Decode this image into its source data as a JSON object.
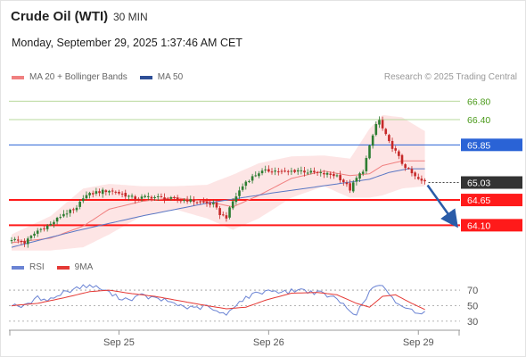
{
  "header": {
    "instrument": "Crude Oil (WTI)",
    "interval": "30 MIN",
    "datetime": "Monday, September 29, 2025 1:37:46 AM CET"
  },
  "legend": {
    "ma20_bb": "MA 20 + Bollinger Bands",
    "ma50": "MA 50",
    "credit": "Research © 2025 Trading Central"
  },
  "rsi_legend": {
    "rsi": "RSI",
    "ma9": "9MA"
  },
  "colors": {
    "up": "#2e7d32",
    "down": "#c62828",
    "ma20": "#f08080",
    "band": "#fde0e0",
    "ma50": "#5a77c4",
    "support": "#ff1a1a",
    "resistance_blue": "#2a63d6",
    "resistance_green": "#b7d89c",
    "green_text": "#4a9a1a",
    "current": "#333333",
    "arrow": "#2a5ca8",
    "rsi": "#6b84d4",
    "rsi_ma": "#e53935"
  },
  "chart_data": [
    {
      "type": "candlestick",
      "x_labels": [
        "Sep 25",
        "Sep 26",
        "Sep 29"
      ],
      "ylim": [
        63.66,
        67.1
      ],
      "levels": [
        {
          "value": 66.8,
          "label": "66.80",
          "style": "green"
        },
        {
          "value": 66.4,
          "label": "66.40",
          "style": "green"
        },
        {
          "value": 65.85,
          "label": "65.85",
          "style": "blue"
        },
        {
          "value": 65.03,
          "label": "65.03",
          "style": "current"
        },
        {
          "value": 64.65,
          "label": "64.65",
          "style": "red"
        },
        {
          "value": 64.1,
          "label": "64.10",
          "style": "red"
        }
      ],
      "close_anchors": [
        [
          0,
          63.8
        ],
        [
          4,
          63.72
        ],
        [
          8,
          63.98
        ],
        [
          12,
          64.12
        ],
        [
          16,
          64.35
        ],
        [
          20,
          64.45
        ],
        [
          22,
          64.72
        ],
        [
          26,
          64.82
        ],
        [
          30,
          64.86
        ],
        [
          34,
          64.78
        ],
        [
          38,
          64.68
        ],
        [
          42,
          64.72
        ],
        [
          46,
          64.7
        ],
        [
          50,
          64.66
        ],
        [
          54,
          64.65
        ],
        [
          58,
          64.6
        ],
        [
          62,
          64.55
        ],
        [
          64,
          64.35
        ],
        [
          66,
          64.28
        ],
        [
          68,
          64.62
        ],
        [
          70,
          64.85
        ],
        [
          72,
          65.05
        ],
        [
          76,
          65.25
        ],
        [
          80,
          65.3
        ],
        [
          84,
          65.25
        ],
        [
          88,
          65.3
        ],
        [
          92,
          65.25
        ],
        [
          96,
          65.22
        ],
        [
          100,
          65.18
        ],
        [
          102,
          65.05
        ],
        [
          104,
          64.88
        ],
        [
          106,
          65.12
        ],
        [
          108,
          65.3
        ],
        [
          110,
          65.8
        ],
        [
          112,
          66.3
        ],
        [
          113,
          66.38
        ],
        [
          114,
          66.2
        ],
        [
          116,
          65.9
        ],
        [
          118,
          65.7
        ],
        [
          120,
          65.45
        ],
        [
          122,
          65.3
        ],
        [
          124,
          65.15
        ],
        [
          126,
          65.05
        ],
        [
          127,
          65.05
        ]
      ],
      "ma20": [
        [
          0,
          63.72
        ],
        [
          12,
          63.82
        ],
        [
          22,
          64.08
        ],
        [
          30,
          64.45
        ],
        [
          40,
          64.62
        ],
        [
          50,
          64.7
        ],
        [
          60,
          64.62
        ],
        [
          68,
          64.5
        ],
        [
          76,
          64.75
        ],
        [
          86,
          65.12
        ],
        [
          96,
          65.28
        ],
        [
          104,
          65.18
        ],
        [
          110,
          65.22
        ],
        [
          114,
          65.4
        ],
        [
          120,
          65.5
        ],
        [
          127,
          65.5
        ]
      ],
      "bb_upper": [
        [
          0,
          63.9
        ],
        [
          12,
          64.3
        ],
        [
          22,
          64.9
        ],
        [
          30,
          65.0
        ],
        [
          40,
          64.95
        ],
        [
          50,
          64.95
        ],
        [
          60,
          64.98
        ],
        [
          68,
          65.2
        ],
        [
          76,
          65.45
        ],
        [
          86,
          65.6
        ],
        [
          96,
          65.62
        ],
        [
          104,
          65.55
        ],
        [
          110,
          66.2
        ],
        [
          114,
          66.5
        ],
        [
          120,
          66.45
        ],
        [
          127,
          66.15
        ]
      ],
      "bb_lower": [
        [
          0,
          63.55
        ],
        [
          12,
          63.55
        ],
        [
          22,
          63.62
        ],
        [
          30,
          63.9
        ],
        [
          40,
          64.3
        ],
        [
          50,
          64.45
        ],
        [
          60,
          64.25
        ],
        [
          68,
          64.0
        ],
        [
          76,
          64.25
        ],
        [
          86,
          64.7
        ],
        [
          96,
          64.95
        ],
        [
          104,
          64.7
        ],
        [
          110,
          64.7
        ],
        [
          114,
          64.75
        ],
        [
          120,
          64.9
        ],
        [
          127,
          64.95
        ]
      ],
      "ma50": [
        [
          0,
          63.62
        ],
        [
          20,
          63.98
        ],
        [
          40,
          64.3
        ],
        [
          60,
          64.58
        ],
        [
          80,
          64.8
        ],
        [
          100,
          65.0
        ],
        [
          110,
          65.1
        ],
        [
          116,
          65.25
        ],
        [
          122,
          65.33
        ],
        [
          127,
          65.33
        ]
      ],
      "forecast_arrow": {
        "from": 65.03,
        "to": 64.1
      }
    },
    {
      "type": "line",
      "title": "RSI",
      "yticks": [
        70,
        50,
        30
      ],
      "ylim": [
        23,
        85
      ],
      "series": [
        {
          "name": "RSI",
          "points": [
            [
              0,
              52
            ],
            [
              4,
              49
            ],
            [
              8,
              60
            ],
            [
              12,
              58
            ],
            [
              16,
              67
            ],
            [
              20,
              73
            ],
            [
              24,
              76
            ],
            [
              28,
              71
            ],
            [
              32,
              62
            ],
            [
              36,
              58
            ],
            [
              40,
              63
            ],
            [
              44,
              59
            ],
            [
              48,
              56
            ],
            [
              52,
              50
            ],
            [
              56,
              46
            ],
            [
              60,
              49
            ],
            [
              64,
              40
            ],
            [
              66,
              38
            ],
            [
              68,
              49
            ],
            [
              72,
              60
            ],
            [
              76,
              67
            ],
            [
              80,
              70
            ],
            [
              84,
              67
            ],
            [
              88,
              71
            ],
            [
              92,
              68
            ],
            [
              96,
              65
            ],
            [
              100,
              58
            ],
            [
              104,
              44
            ],
            [
              106,
              40
            ],
            [
              108,
              52
            ],
            [
              110,
              68
            ],
            [
              112,
              76
            ],
            [
              114,
              74
            ],
            [
              116,
              63
            ],
            [
              118,
              55
            ],
            [
              120,
              50
            ],
            [
              122,
              45
            ],
            [
              124,
              43
            ],
            [
              126,
              42
            ],
            [
              127,
              42
            ]
          ]
        },
        {
          "name": "9MA",
          "points": [
            [
              0,
              50
            ],
            [
              8,
              53
            ],
            [
              16,
              60
            ],
            [
              24,
              68
            ],
            [
              30,
              70
            ],
            [
              36,
              66
            ],
            [
              44,
              62
            ],
            [
              52,
              56
            ],
            [
              60,
              50
            ],
            [
              66,
              46
            ],
            [
              72,
              48
            ],
            [
              78,
              57
            ],
            [
              86,
              66
            ],
            [
              94,
              67
            ],
            [
              100,
              64
            ],
            [
              106,
              53
            ],
            [
              110,
              48
            ],
            [
              114,
              62
            ],
            [
              118,
              64
            ],
            [
              122,
              55
            ],
            [
              127,
              45
            ]
          ]
        }
      ]
    }
  ]
}
